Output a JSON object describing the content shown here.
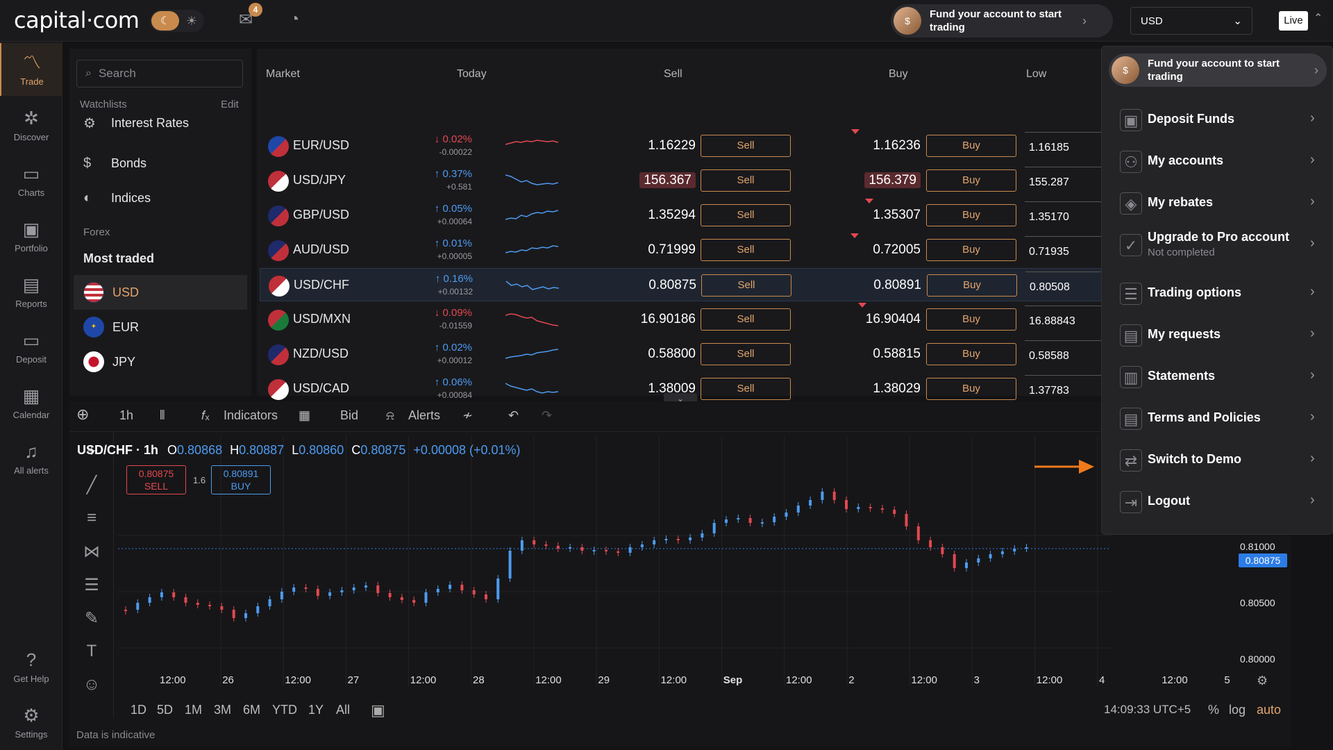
{
  "header": {
    "logo_text": "capital·com",
    "theme_icons": [
      "moon-icon",
      "sun-icon"
    ],
    "mail_badge": "4",
    "fund_text": "Fund your account to start trading",
    "currency": "USD",
    "mode": "Live"
  },
  "nav": [
    {
      "label": "Trade",
      "icon": "trade-icon",
      "active": true
    },
    {
      "label": "Discover",
      "icon": "discover-icon"
    },
    {
      "label": "Charts",
      "icon": "charts-icon"
    },
    {
      "label": "Portfolio",
      "icon": "portfolio-icon"
    },
    {
      "label": "Reports",
      "icon": "reports-icon"
    },
    {
      "label": "Deposit",
      "icon": "deposit-icon"
    },
    {
      "label": "Calendar",
      "icon": "calendar-icon"
    },
    {
      "label": "All alerts",
      "icon": "bell-icon"
    },
    {
      "label": "Get Help",
      "icon": "help-icon"
    },
    {
      "label": "Settings",
      "icon": "gear-icon"
    }
  ],
  "watchlist": {
    "search_placeholder": "Search",
    "heading": "Watchlists",
    "edit": "Edit",
    "categories": [
      "Interest Rates",
      "Bonds",
      "Indices"
    ],
    "section": "Forex",
    "subsection": "Most traded",
    "currencies": [
      "USD",
      "EUR",
      "JPY"
    ]
  },
  "market": {
    "columns": [
      "Market",
      "Today",
      "Sell",
      "Buy",
      "Low"
    ],
    "sell_label": "Sell",
    "buy_label": "Buy",
    "rows": [
      {
        "name": "EUR/USD",
        "pct": "↓ 0.02%",
        "abs": "-0.00022",
        "dir": "dn",
        "sell": "1.16229",
        "buy": "1.16236",
        "low": "1.16185"
      },
      {
        "name": "USD/JPY",
        "pct": "↑ 0.37%",
        "abs": "+0.581",
        "dir": "up",
        "sell": "156.367",
        "buy": "156.379",
        "low": "155.287"
      },
      {
        "name": "GBP/USD",
        "pct": "↑ 0.05%",
        "abs": "+0.00064",
        "dir": "up",
        "sell": "1.35294",
        "buy": "1.35307",
        "low": "1.35170"
      },
      {
        "name": "AUD/USD",
        "pct": "↑ 0.01%",
        "abs": "+0.00005",
        "dir": "up",
        "sell": "0.71999",
        "buy": "0.72005",
        "low": "0.71935"
      },
      {
        "name": "USD/CHF",
        "pct": "↑ 0.16%",
        "abs": "+0.00132",
        "dir": "up",
        "sell": "0.80875",
        "buy": "0.80891",
        "low": "0.80508"
      },
      {
        "name": "USD/MXN",
        "pct": "↓ 0.09%",
        "abs": "-0.01559",
        "dir": "dn",
        "sell": "16.90186",
        "buy": "16.90404",
        "low": "16.88843"
      },
      {
        "name": "NZD/USD",
        "pct": "↑ 0.02%",
        "abs": "+0.00012",
        "dir": "up",
        "sell": "0.58800",
        "buy": "0.58815",
        "low": "0.58588"
      },
      {
        "name": "USD/CAD",
        "pct": "↑ 0.06%",
        "abs": "+0.00084",
        "dir": "up",
        "sell": "1.38009",
        "buy": "1.38029",
        "low": "1.37783"
      }
    ]
  },
  "chart_toolbar": {
    "interval": "1h",
    "indicators": "Indicators",
    "price_type": "Bid",
    "alerts": "Alerts"
  },
  "chart": {
    "title": "USD/CHF · 1h",
    "o_label": "O",
    "o": "0.80868",
    "h_label": "H",
    "h": "0.80887",
    "l_label": "L",
    "l": "0.80860",
    "c_label": "C",
    "c": "0.80875",
    "change": "+0.00008 (+0.01%)",
    "sell_price": "0.80875",
    "sell_label": "SELL",
    "spread": "1.6",
    "buy_price": "0.80891",
    "buy_label": "BUY",
    "axis_prices": [
      "0.81000",
      "0.80500",
      "0.80000"
    ],
    "current_price": "0.80875",
    "time_labels": [
      "12:00",
      "26",
      "12:00",
      "27",
      "12:00",
      "28",
      "12:00",
      "29",
      "12:00",
      "Sep",
      "12:00",
      "2",
      "12:00",
      "3",
      "12:00",
      "4",
      "12:00",
      "5"
    ],
    "ranges": [
      "1D",
      "5D",
      "1M",
      "3M",
      "6M",
      "YTD",
      "1Y",
      "All"
    ],
    "clock": "14:09:33 UTC+5",
    "scale_options": [
      "%",
      "log",
      "auto"
    ],
    "note": "Data is indicative"
  },
  "account_menu": {
    "fund_text": "Fund your account to start trading",
    "items": [
      {
        "label": "Deposit Funds",
        "icon": "deposit-funds-icon"
      },
      {
        "label": "My accounts",
        "icon": "accounts-icon"
      },
      {
        "label": "My rebates",
        "icon": "rebates-icon"
      },
      {
        "label": "Upgrade to Pro account",
        "sub": "Not completed",
        "icon": "upgrade-icon"
      },
      {
        "label": "Trading options",
        "icon": "trading-options-icon"
      },
      {
        "label": "My requests",
        "icon": "requests-icon"
      },
      {
        "label": "Statements",
        "icon": "statements-icon"
      },
      {
        "label": "Terms and Policies",
        "icon": "terms-icon"
      },
      {
        "label": "Switch to Demo",
        "icon": "switch-demo-icon"
      },
      {
        "label": "Logout",
        "icon": "logout-icon"
      }
    ]
  },
  "colors": {
    "accent": "#c98a4d",
    "up": "#4d9bf0",
    "down": "#e34850",
    "background": "#131315"
  }
}
